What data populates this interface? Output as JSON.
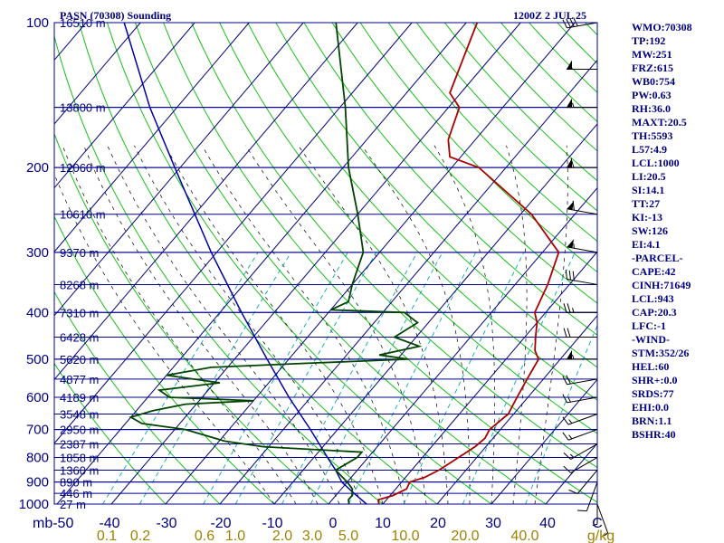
{
  "header": {
    "station": "PASN (70308) Sounding",
    "time": "1200Z  2 JUL 25"
  },
  "indices": [
    "WMO:70308",
    "TP:192",
    "MW:251",
    "FRZ:615",
    "WB0:754",
    "PW:0.63",
    "RH:36.0",
    "MAXT:20.5",
    "TH:5593",
    "L57:4.9",
    "LCL:1000",
    "LI:20.5",
    "SI:14.1",
    "TT:27",
    "KI:-13",
    "SW:126",
    "EI:4.1",
    "-PARCEL-",
    "CAPE:42",
    "CINH:71649",
    "LCL:943",
    "CAP:20.3",
    "LFC:-1",
    "-WIND-",
    "STM:352/26",
    "HEL:60",
    "SHR+:0.0",
    "SRDS:77",
    "EHI:0.0",
    "BRN:1.1",
    "BSHR:40"
  ],
  "colors": {
    "isobar": "#00008b",
    "isotherm": "#000080",
    "dry_adiabat": "#00bb00",
    "moist_adiabat": "#000000",
    "mixing_ratio": "#00aaaa",
    "temperature": "#aa0000",
    "dewpoint": "#004400",
    "parcel": "#0000aa"
  },
  "chart_data": {
    "type": "skew-t",
    "title": "PASN (70308) Sounding",
    "pressure_unit": "mb",
    "mixing_ratio_unit": "g/kg",
    "ylim": [
      1000,
      100
    ],
    "xlim": [
      -50,
      50
    ],
    "pressure_labels": [
      100,
      200,
      300,
      400,
      500,
      600,
      700,
      800,
      900,
      1000
    ],
    "pressure_levels": [
      1000,
      900,
      850,
      800,
      700,
      600,
      500,
      400,
      300,
      200,
      150,
      100
    ],
    "temperature_labels": [
      "mb-50",
      "-40",
      "-30",
      "-20",
      "-10",
      "0",
      "10",
      "20",
      "30",
      "40",
      "C"
    ],
    "mixing_ratio_labels": [
      "0.1",
      "0.2",
      "0.6",
      "1.0",
      "2.0",
      "3.0",
      "5.0",
      "10.0",
      "20.0",
      "40.0",
      "g/kg"
    ],
    "height_labels": [
      {
        "p": 100,
        "label": "16510 m"
      },
      {
        "p": 150,
        "label": "13800 m"
      },
      {
        "p": 200,
        "label": "12060 m"
      },
      {
        "p": 250,
        "label": "10610 m"
      },
      {
        "p": 300,
        "label": "9370 m"
      },
      {
        "p": 350,
        "label": "8268 m"
      },
      {
        "p": 400,
        "label": "7310 m"
      },
      {
        "p": 450,
        "label": "6428 m"
      },
      {
        "p": 500,
        "label": "5620 m"
      },
      {
        "p": 550,
        "label": "4877 m"
      },
      {
        "p": 600,
        "label": "4189 m"
      },
      {
        "p": 650,
        "label": "3548 m"
      },
      {
        "p": 700,
        "label": "2950 m"
      },
      {
        "p": 750,
        "label": "2387 m"
      },
      {
        "p": 800,
        "label": "1858 m"
      },
      {
        "p": 850,
        "label": "1360 m"
      },
      {
        "p": 900,
        "label": "890 m"
      },
      {
        "p": 950,
        "label": "446 m"
      },
      {
        "p": 1000,
        "label": "27 m"
      }
    ],
    "temperature_profile": [
      [
        1006,
        9.5
      ],
      [
        980,
        8.5
      ],
      [
        960,
        10.5
      ],
      [
        930,
        12
      ],
      [
        900,
        11.5
      ],
      [
        880,
        13.5
      ],
      [
        850,
        15
      ],
      [
        820,
        16
      ],
      [
        790,
        17
      ],
      [
        760,
        18
      ],
      [
        730,
        18.5
      ],
      [
        700,
        18
      ],
      [
        650,
        19
      ],
      [
        600,
        18
      ],
      [
        550,
        17
      ],
      [
        500,
        16
      ],
      [
        480,
        14
      ],
      [
        450,
        12
      ],
      [
        420,
        10
      ],
      [
        400,
        8
      ],
      [
        350,
        6
      ],
      [
        300,
        3
      ],
      [
        250,
        -8
      ],
      [
        200,
        -25
      ],
      [
        190,
        -32
      ],
      [
        175,
        -35
      ],
      [
        150,
        -38
      ],
      [
        140,
        -42
      ],
      [
        100,
        -48
      ]
    ],
    "dewpoint_profile": [
      [
        1006,
        4
      ],
      [
        980,
        3
      ],
      [
        960,
        3
      ],
      [
        930,
        2
      ],
      [
        900,
        0
      ],
      [
        850,
        -4
      ],
      [
        800,
        -2
      ],
      [
        780,
        -2
      ],
      [
        760,
        -21
      ],
      [
        740,
        -29
      ],
      [
        700,
        -38
      ],
      [
        680,
        -47
      ],
      [
        660,
        -50
      ],
      [
        640,
        -47
      ],
      [
        620,
        -42
      ],
      [
        610,
        -30
      ],
      [
        600,
        -46
      ],
      [
        580,
        -49
      ],
      [
        560,
        -39
      ],
      [
        540,
        -50
      ],
      [
        520,
        -43
      ],
      [
        510,
        -26
      ],
      [
        500,
        -8
      ],
      [
        490,
        -14
      ],
      [
        470,
        -8
      ],
      [
        450,
        -14
      ],
      [
        420,
        -12
      ],
      [
        400,
        -16
      ],
      [
        395,
        -30
      ],
      [
        380,
        -28
      ],
      [
        350,
        -30
      ],
      [
        300,
        -33
      ],
      [
        250,
        -40
      ],
      [
        200,
        -49
      ],
      [
        150,
        -59
      ],
      [
        100,
        -74
      ]
    ],
    "parcel_profile": [
      [
        1000,
        7
      ],
      [
        950,
        3
      ],
      [
        900,
        -1
      ],
      [
        850,
        -4
      ],
      [
        800,
        -7.5
      ],
      [
        700,
        -15
      ],
      [
        600,
        -24
      ],
      [
        500,
        -34
      ],
      [
        400,
        -46
      ],
      [
        300,
        -61
      ],
      [
        250,
        -70
      ],
      [
        200,
        -81
      ],
      [
        150,
        -95
      ],
      [
        100,
        -113
      ]
    ],
    "wind_barbs": [
      {
        "p": 1000,
        "dir": 160,
        "spd": 5
      },
      {
        "p": 950,
        "dir": 180,
        "spd": 5
      },
      {
        "p": 900,
        "dir": 200,
        "spd": 10
      },
      {
        "p": 850,
        "dir": 220,
        "spd": 10
      },
      {
        "p": 800,
        "dir": 240,
        "spd": 10
      },
      {
        "p": 750,
        "dir": 240,
        "spd": 15
      },
      {
        "p": 700,
        "dir": 250,
        "spd": 15
      },
      {
        "p": 650,
        "dir": 250,
        "spd": 15
      },
      {
        "p": 600,
        "dir": 260,
        "spd": 15
      },
      {
        "p": 550,
        "dir": 260,
        "spd": 20
      },
      {
        "p": 500,
        "dir": 270,
        "spd": 55
      },
      {
        "p": 450,
        "dir": 270,
        "spd": 20
      },
      {
        "p": 400,
        "dir": 270,
        "spd": 25
      },
      {
        "p": 350,
        "dir": 280,
        "spd": 30
      },
      {
        "p": 300,
        "dir": 280,
        "spd": 55
      },
      {
        "p": 250,
        "dir": 280,
        "spd": 60
      },
      {
        "p": 200,
        "dir": 270,
        "spd": 60
      },
      {
        "p": 150,
        "dir": 270,
        "spd": 55
      },
      {
        "p": 125,
        "dir": 270,
        "spd": 50
      },
      {
        "p": 100,
        "dir": 260,
        "spd": 40
      }
    ]
  }
}
